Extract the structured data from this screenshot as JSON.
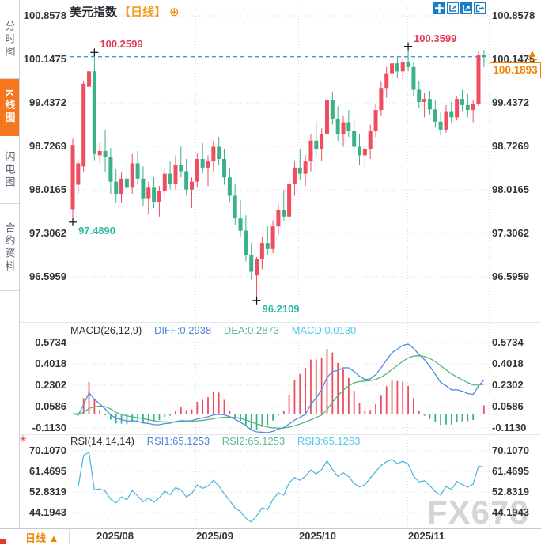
{
  "window": {
    "title_instrument": "美元指数",
    "title_period": "【日线】",
    "add_icon": "⊕"
  },
  "sidebar": {
    "tabs": [
      {
        "label": "分时图",
        "active": false
      },
      {
        "label": "K线图",
        "active": true
      },
      {
        "label": "闪电图",
        "active": false
      },
      {
        "label": "合约资料",
        "active": false
      }
    ]
  },
  "toolbar": {
    "icons": [
      "move-crosshair-icon",
      "zoom-reset-icon",
      "axis-scale-icon",
      "pop-out-icon"
    ]
  },
  "price_badge": {
    "value": "100.1893",
    "arrow": "▲"
  },
  "macd_header": {
    "name": "MACD(26,12,9)",
    "diff": "DIFF:0.2938",
    "dea": "DEA:0.2873",
    "macd": "MACD:0.0130"
  },
  "rsi_header": {
    "name": "RSI(14,14,14)",
    "rsi1": "RSI1:65.1253",
    "rsi2": "RSI2:65.1253",
    "rsi3": "RSI3:65.1253",
    "settings_icon": "✳"
  },
  "bottom_bar": {
    "period": "日线",
    "arrow": "▲"
  },
  "watermark": "FX678",
  "colors": {
    "up": "#ee4e60",
    "down": "#3bb18a",
    "diff_line": "#4b8ce0",
    "dea_line": "#55b57c",
    "rsi_line": "#45b4dc",
    "accent": "#f08300",
    "active_tab": "#f5761d",
    "toolbar_blue": "#1b7ec2",
    "annotation_high": "#e23a57",
    "annotation_low": "#2fb9a0",
    "dashed_price_line": "#2f8be0",
    "grid": "#d7dbe4",
    "axis_text": "#333333"
  },
  "chart_data": {
    "type": "candlestick",
    "title": "美元指数【日线】",
    "x_labels": [
      "2025/08",
      "2025/09",
      "2025/10",
      "2025/11"
    ],
    "y_axis_main": [
      "100.8578",
      "100.1475",
      "99.4372",
      "98.7269",
      "98.0165",
      "97.3062",
      "96.5959"
    ],
    "y_axis_macd": [
      "0.5734",
      "0.4018",
      "0.2302",
      "0.0586",
      "-0.1130"
    ],
    "y_axis_rsi": [
      "70.1070",
      "61.4695",
      "52.8319",
      "44.1943"
    ],
    "current_price": 100.1893,
    "markers": [
      {
        "type": "high",
        "index": 4,
        "label": "100.2599"
      },
      {
        "type": "high",
        "index": 62,
        "label": "100.3599"
      },
      {
        "type": "low",
        "index": 0,
        "label": "97.4890"
      },
      {
        "type": "low",
        "index": 34,
        "label": "96.2109"
      }
    ],
    "indicators": {
      "macd": {
        "params": [
          26,
          12,
          9
        ],
        "diff": 0.2938,
        "dea": 0.2873,
        "macd": 0.013
      },
      "rsi": {
        "params": [
          14,
          14,
          14
        ],
        "rsi1": 65.1253,
        "rsi2": 65.1253,
        "rsi3": 65.1253
      }
    },
    "ohlc": [
      [
        97.7,
        98.85,
        97.489,
        98.75
      ],
      [
        98.1,
        98.5,
        97.95,
        98.45
      ],
      [
        98.4,
        99.8,
        98.3,
        99.75
      ],
      [
        99.7,
        100.0,
        99.55,
        99.95
      ],
      [
        99.95,
        100.2599,
        98.5,
        98.6
      ],
      [
        98.58,
        98.8,
        98.45,
        98.65
      ],
      [
        98.65,
        99.0,
        98.3,
        98.55
      ],
      [
        98.55,
        98.7,
        97.95,
        98.15
      ],
      [
        98.15,
        98.35,
        97.8,
        97.95
      ],
      [
        97.95,
        98.3,
        97.8,
        98.2
      ],
      [
        98.2,
        98.45,
        97.95,
        98.05
      ],
      [
        98.05,
        98.6,
        97.95,
        98.45
      ],
      [
        98.45,
        98.65,
        98.1,
        98.2
      ],
      [
        98.2,
        98.4,
        97.75,
        97.88
      ],
      [
        97.88,
        98.15,
        97.62,
        98.05
      ],
      [
        98.05,
        98.22,
        97.72,
        97.82
      ],
      [
        97.82,
        98.08,
        97.58,
        98.0
      ],
      [
        98.0,
        98.38,
        97.88,
        98.28
      ],
      [
        98.28,
        98.48,
        98.02,
        98.12
      ],
      [
        98.12,
        98.58,
        98.02,
        98.42
      ],
      [
        98.42,
        98.72,
        98.22,
        98.32
      ],
      [
        98.32,
        98.52,
        97.92,
        98.02
      ],
      [
        98.02,
        98.22,
        97.72,
        98.15
      ],
      [
        98.15,
        98.62,
        98.05,
        98.52
      ],
      [
        98.52,
        98.78,
        98.28,
        98.38
      ],
      [
        98.38,
        98.58,
        98.08,
        98.48
      ],
      [
        98.48,
        98.82,
        98.32,
        98.72
      ],
      [
        98.72,
        98.88,
        98.42,
        98.52
      ],
      [
        98.52,
        98.68,
        98.1,
        98.22
      ],
      [
        98.22,
        98.38,
        97.82,
        97.92
      ],
      [
        97.92,
        98.12,
        97.45,
        97.55
      ],
      [
        97.55,
        97.85,
        97.25,
        97.35
      ],
      [
        97.35,
        97.6,
        96.85,
        96.95
      ],
      [
        96.95,
        97.15,
        96.55,
        96.68
      ],
      [
        96.62,
        96.92,
        96.2109,
        96.88
      ],
      [
        96.88,
        97.25,
        96.72,
        97.15
      ],
      [
        97.15,
        97.42,
        96.95,
        97.05
      ],
      [
        97.05,
        97.52,
        96.98,
        97.42
      ],
      [
        97.42,
        97.78,
        97.28,
        97.68
      ],
      [
        97.68,
        98.02,
        97.52,
        97.58
      ],
      [
        97.58,
        98.22,
        97.48,
        98.12
      ],
      [
        98.12,
        98.48,
        97.92,
        98.38
      ],
      [
        98.38,
        98.68,
        98.18,
        98.28
      ],
      [
        98.28,
        98.58,
        98.08,
        98.48
      ],
      [
        98.48,
        98.92,
        98.32,
        98.82
      ],
      [
        98.82,
        99.12,
        98.58,
        98.68
      ],
      [
        98.68,
        99.02,
        98.48,
        98.92
      ],
      [
        98.92,
        99.58,
        98.82,
        99.48
      ],
      [
        99.48,
        99.62,
        99.08,
        99.18
      ],
      [
        99.18,
        99.38,
        98.82,
        98.92
      ],
      [
        98.92,
        99.22,
        98.72,
        99.12
      ],
      [
        99.12,
        99.32,
        98.88,
        98.98
      ],
      [
        98.98,
        99.18,
        98.62,
        98.72
      ],
      [
        98.72,
        98.92,
        98.42,
        98.58
      ],
      [
        98.58,
        98.78,
        98.38,
        98.68
      ],
      [
        98.68,
        99.08,
        98.52,
        98.98
      ],
      [
        98.98,
        99.42,
        98.88,
        99.32
      ],
      [
        99.32,
        99.78,
        99.22,
        99.68
      ],
      [
        99.68,
        100.02,
        99.52,
        99.92
      ],
      [
        99.92,
        100.18,
        99.72,
        100.08
      ],
      [
        100.08,
        100.2,
        99.85,
        99.95
      ],
      [
        99.95,
        100.15,
        99.82,
        100.1
      ],
      [
        100.1,
        100.3599,
        99.95,
        100.02
      ],
      [
        100.02,
        100.1,
        99.55,
        99.65
      ],
      [
        99.65,
        99.8,
        99.35,
        99.45
      ],
      [
        99.45,
        99.6,
        99.2,
        99.5
      ],
      [
        99.5,
        99.63,
        99.23,
        99.33
      ],
      [
        99.33,
        99.48,
        99.03,
        99.13
      ],
      [
        99.13,
        99.28,
        98.9,
        99.0
      ],
      [
        99.0,
        99.4,
        98.95,
        99.3
      ],
      [
        99.3,
        99.45,
        99.1,
        99.2
      ],
      [
        99.2,
        99.55,
        99.15,
        99.5
      ],
      [
        99.5,
        99.65,
        99.3,
        99.4
      ],
      [
        99.4,
        99.58,
        99.2,
        99.32
      ],
      [
        99.32,
        99.48,
        99.12,
        99.42
      ],
      [
        99.42,
        100.28,
        99.38,
        100.22
      ],
      [
        100.22,
        100.3,
        100.02,
        100.1893
      ]
    ]
  }
}
